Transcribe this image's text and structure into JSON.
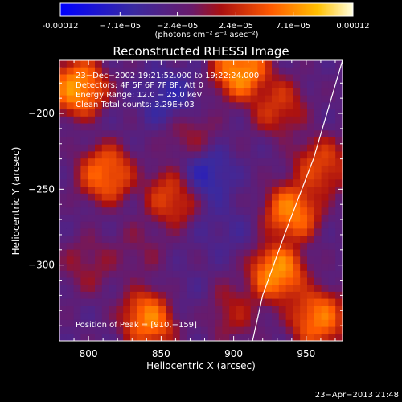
{
  "colorbar": {
    "tick_labels": [
      "-0.00012",
      "−7.1e−05",
      "−2.4e−05",
      "2.4e−05",
      "7.1e−05",
      "0.00012"
    ],
    "tick_values": [
      -0.00012,
      -7.1e-05,
      -2.4e-05,
      2.4e-05,
      7.1e-05,
      0.00012
    ],
    "unit_label": "(photons cm⁻² s⁻¹ asec⁻²)",
    "range": [
      -0.00012,
      0.00012
    ]
  },
  "plot": {
    "title": "Reconstructed RHESSI Image",
    "info_lines": [
      "23−Dec−2002 19:21:52.000 to 19:22:24.000",
      "Detectors: 4F 5F 6F 7F 8F, Att 0",
      "Energy Range: 12.0 − 25.0 keV",
      "Clean    Total counts: 3.29E+03"
    ],
    "peak_text": "Position of Peak = [910,−159]"
  },
  "footer": {
    "timestamp": "23−Apr−2013 21:48"
  },
  "chart_data": {
    "type": "heatmap",
    "title": "Reconstructed RHESSI Image",
    "xlabel": "Heliocentric X (arcsec)",
    "ylabel": "Heliocentric Y (arcsec)",
    "xlim": [
      780,
      975
    ],
    "ylim": [
      -350,
      -165
    ],
    "x_ticks": [
      800,
      850,
      900,
      950
    ],
    "y_ticks": [
      -200,
      -250,
      -300
    ],
    "x_tick_labels": [
      "800",
      "850",
      "900",
      "950"
    ],
    "y_tick_labels": [
      "−200",
      "−250",
      "−300"
    ],
    "colormap": "RHESSI blue-purple-red-yellow-white",
    "value_range": [
      -0.00012,
      0.00012
    ],
    "peak_position": [
      910,
      -159
    ],
    "limb_curve": [
      [
        913,
        -350
      ],
      [
        920,
        -320
      ],
      [
        935,
        -280
      ],
      [
        955,
        -230
      ],
      [
        975,
        -165
      ]
    ],
    "features": [
      {
        "x": 793,
        "y": -183,
        "level": 0.95
      },
      {
        "x": 812,
        "y": -240,
        "level": 0.85
      },
      {
        "x": 835,
        "y": -290,
        "level": 0.5
      },
      {
        "x": 842,
        "y": -335,
        "level": 0.9
      },
      {
        "x": 870,
        "y": -215,
        "level": 0.55
      },
      {
        "x": 858,
        "y": -255,
        "level": 0.75
      },
      {
        "x": 940,
        "y": -265,
        "level": 0.9
      },
      {
        "x": 930,
        "y": -305,
        "level": 0.95
      },
      {
        "x": 960,
        "y": -235,
        "level": 0.75
      },
      {
        "x": 958,
        "y": -335,
        "level": 0.88
      },
      {
        "x": 905,
        "y": -172,
        "level": 0.95
      },
      {
        "x": 930,
        "y": -195,
        "level": 0.7
      },
      {
        "x": 855,
        "y": -190,
        "level": 0.2
      },
      {
        "x": 880,
        "y": -240,
        "level": 0.15
      },
      {
        "x": 893,
        "y": -275,
        "level": 0.3
      },
      {
        "x": 868,
        "y": -320,
        "level": 0.35
      },
      {
        "x": 800,
        "y": -300,
        "level": 0.55
      },
      {
        "x": 900,
        "y": -330,
        "level": 0.6
      }
    ]
  }
}
